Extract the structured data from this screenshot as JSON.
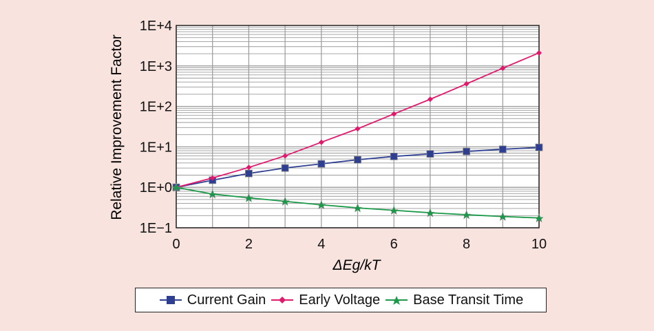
{
  "chart_data": {
    "type": "line",
    "title": "",
    "xlabel": "ΔEg/kT",
    "ylabel": "Relative Improvement Factor",
    "xlim": [
      0,
      10
    ],
    "ylim": [
      0.1,
      10000
    ],
    "yscale": "log",
    "grid": true,
    "legend_placement": "bottom",
    "x": [
      0,
      1,
      2,
      3,
      4,
      5,
      6,
      7,
      8,
      9,
      10
    ],
    "xticks": [
      "0",
      "2",
      "4",
      "6",
      "8",
      "10"
    ],
    "yticks": [
      "1E−1",
      "1E+0",
      "1E+1",
      "1E+2",
      "1E+3",
      "1E+4"
    ],
    "series": [
      {
        "name": "Current Gain",
        "color": "#2e3f91",
        "marker": "square",
        "values": [
          1,
          1.5,
          2.2,
          3.0,
          3.8,
          4.8,
          5.8,
          6.7,
          7.7,
          8.7,
          9.7
        ]
      },
      {
        "name": "Early Voltage",
        "color": "#e0196d",
        "marker": "diamond",
        "values": [
          1,
          1.7,
          3.1,
          6.0,
          13,
          28,
          65,
          150,
          360,
          880,
          2100
        ]
      },
      {
        "name": "Base Transit Time",
        "color": "#1a9a48",
        "marker": "star",
        "values": [
          1,
          0.68,
          0.55,
          0.45,
          0.37,
          0.31,
          0.27,
          0.235,
          0.21,
          0.19,
          0.175
        ]
      }
    ]
  }
}
